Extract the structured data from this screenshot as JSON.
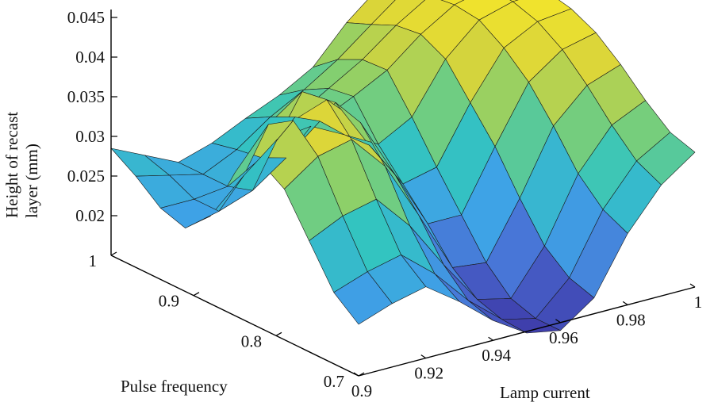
{
  "chart_data": {
    "type": "surface",
    "title": "",
    "xlabel": "Lamp current",
    "ylabel": "Pulse frequency",
    "zlabel": "Height of recast layer (mm)",
    "zlabel_lines": [
      "Height of recast",
      "layer (mm)"
    ],
    "x_ticks": [
      "0.9",
      "0.92",
      "0.94",
      "0.96",
      "0.98",
      "1"
    ],
    "y_ticks": [
      "0.7",
      "0.8",
      "0.9",
      "1"
    ],
    "z_ticks": [
      "0.02",
      "0.025",
      "0.03",
      "0.035",
      "0.04",
      "0.045"
    ],
    "xlim": [
      0.9,
      1.0
    ],
    "ylim": [
      0.7,
      1.0
    ],
    "zlim": [
      0.015,
      0.045
    ],
    "colormap": [
      "#3e3aa8",
      "#4a6fd4",
      "#3ea3e6",
      "#33c4c0",
      "#7fcf72",
      "#d9d43a",
      "#f5e62a"
    ],
    "x": [
      0.9,
      0.91,
      0.92,
      0.93,
      0.94,
      0.95,
      0.96,
      0.97,
      0.98,
      0.99,
      1.0
    ],
    "y": [
      1.0,
      0.97,
      0.94,
      0.91,
      0.88,
      0.85,
      0.82,
      0.79,
      0.76,
      0.73,
      0.7
    ],
    "z": [
      [
        0.0285,
        0.0265,
        0.0245,
        0.0258,
        0.0278,
        0.0296,
        0.032,
        0.0365,
        0.04,
        0.042,
        0.043
      ],
      [
        0.0265,
        0.0255,
        0.0245,
        0.0265,
        0.0295,
        0.0318,
        0.0345,
        0.0378,
        0.041,
        0.0425,
        0.0432
      ],
      [
        0.024,
        0.024,
        0.0245,
        0.027,
        0.031,
        0.0335,
        0.036,
        0.0392,
        0.0418,
        0.043,
        0.0435
      ],
      [
        0.023,
        0.024,
        0.0255,
        0.0285,
        0.032,
        0.034,
        0.0362,
        0.0396,
        0.0422,
        0.0432,
        0.0436
      ],
      [
        0.026,
        0.03,
        0.0335,
        0.034,
        0.0318,
        0.0295,
        0.0318,
        0.038,
        0.0418,
        0.043,
        0.0432
      ],
      [
        0.033,
        0.038,
        0.041,
        0.0385,
        0.032,
        0.026,
        0.027,
        0.034,
        0.0398,
        0.042,
        0.0425
      ],
      [
        0.036,
        0.04,
        0.0415,
        0.0375,
        0.03,
        0.0225,
        0.0225,
        0.03,
        0.037,
        0.04,
        0.041
      ],
      [
        0.034,
        0.037,
        0.038,
        0.0335,
        0.0262,
        0.0185,
        0.018,
        0.025,
        0.033,
        0.037,
        0.0385
      ],
      [
        0.029,
        0.031,
        0.032,
        0.0275,
        0.0215,
        0.016,
        0.015,
        0.0205,
        0.0285,
        0.0335,
        0.0355
      ],
      [
        0.024,
        0.0255,
        0.0265,
        0.023,
        0.0185,
        0.015,
        0.014,
        0.018,
        0.0255,
        0.0305,
        0.033
      ],
      [
        0.0215,
        0.023,
        0.024,
        0.021,
        0.0175,
        0.0148,
        0.014,
        0.017,
        0.024,
        0.029,
        0.032
      ]
    ]
  }
}
